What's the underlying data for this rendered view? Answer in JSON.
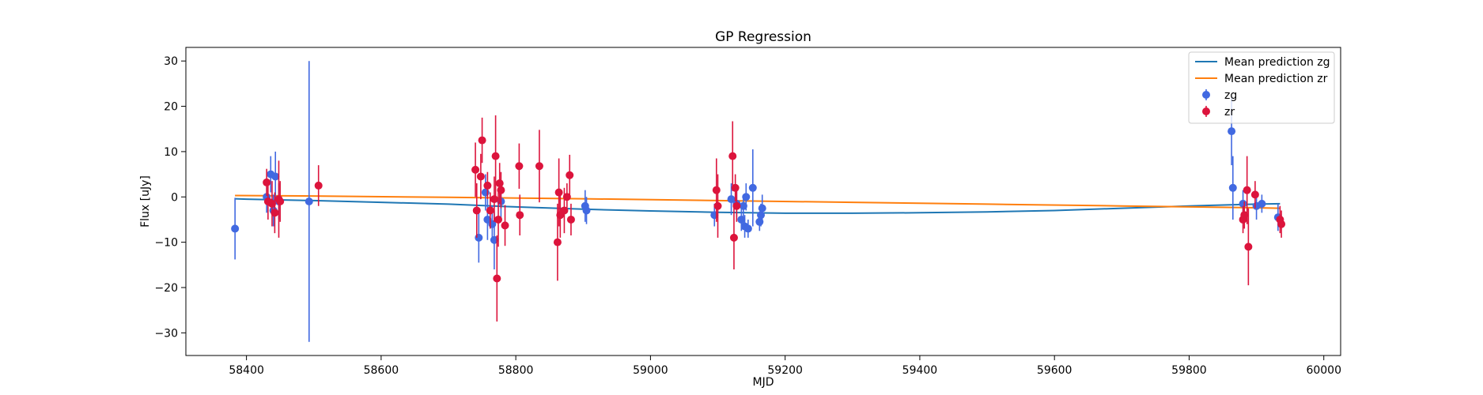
{
  "chart_data": {
    "type": "scatter",
    "title": "GP Regression",
    "xlabel": "MJD",
    "ylabel": "Flux [uJy]",
    "xlim": [
      58310,
      60025
    ],
    "ylim": [
      -35,
      33
    ],
    "xticks": [
      58400,
      58600,
      58800,
      59000,
      59200,
      59400,
      59600,
      59800,
      60000
    ],
    "yticks": [
      -30,
      -20,
      -10,
      0,
      10,
      20,
      30
    ],
    "xtick_labels": [
      "58400",
      "58600",
      "58800",
      "59000",
      "59200",
      "59400",
      "59600",
      "59800",
      "60000"
    ],
    "ytick_labels": [
      "−30",
      "−20",
      "−10",
      "0",
      "10",
      "20",
      "30"
    ],
    "grid": false,
    "legend_position": "top-right",
    "legend": [
      {
        "label": "Mean prediction zg",
        "kind": "line",
        "color": "#1f77b4"
      },
      {
        "label": "Mean prediction zr",
        "kind": "line",
        "color": "#ff7f0e"
      },
      {
        "label": "zg",
        "kind": "errorbar",
        "color": "#4169e1"
      },
      {
        "label": "zr",
        "kind": "errorbar",
        "color": "#dc143c"
      }
    ],
    "mean_lines": [
      {
        "name": "Mean prediction zg",
        "color": "#1f77b4",
        "x": [
          58383,
          58400,
          58500,
          58600,
          58700,
          58800,
          58900,
          59000,
          59100,
          59200,
          59300,
          59400,
          59500,
          59600,
          59700,
          59800,
          59900,
          59935
        ],
        "y": [
          -0.4,
          -0.5,
          -0.8,
          -1.2,
          -1.6,
          -2.2,
          -2.7,
          -3.1,
          -3.4,
          -3.6,
          -3.6,
          -3.5,
          -3.3,
          -3.0,
          -2.5,
          -2.0,
          -1.6,
          -1.5
        ]
      },
      {
        "name": "Mean prediction zr",
        "color": "#ff7f0e",
        "x": [
          58383,
          58500,
          58700,
          58900,
          59100,
          59300,
          59500,
          59700,
          59900,
          59935
        ],
        "y": [
          0.3,
          0.2,
          -0.1,
          -0.4,
          -0.8,
          -1.2,
          -1.6,
          -2.0,
          -2.4,
          -2.5
        ]
      }
    ],
    "series": [
      {
        "name": "zg",
        "color": "#4169e1",
        "points": [
          {
            "x": 58383,
            "y": -7.0,
            "err": 6.8
          },
          {
            "x": 58430,
            "y": 0.0,
            "err": 3.5
          },
          {
            "x": 58436,
            "y": 5.0,
            "err": 4.0
          },
          {
            "x": 58440,
            "y": -3.0,
            "err": 3.5
          },
          {
            "x": 58443,
            "y": 4.5,
            "err": 5.5
          },
          {
            "x": 58448,
            "y": -1.0,
            "err": 4.0
          },
          {
            "x": 58493,
            "y": -1.0,
            "err": 31.0
          },
          {
            "x": 58745,
            "y": -9.0,
            "err": 5.5
          },
          {
            "x": 58755,
            "y": 1.0,
            "err": 4.0
          },
          {
            "x": 58758,
            "y": -5.0,
            "err": 4.5
          },
          {
            "x": 58765,
            "y": -6.0,
            "err": 4.0
          },
          {
            "x": 58768,
            "y": -9.5,
            "err": 6.5
          },
          {
            "x": 58778,
            "y": -1.0,
            "err": 4.0
          },
          {
            "x": 58903,
            "y": -2.0,
            "err": 3.5
          },
          {
            "x": 58905,
            "y": -3.0,
            "err": 3.0
          },
          {
            "x": 59095,
            "y": -4.0,
            "err": 2.5
          },
          {
            "x": 59120,
            "y": -0.5,
            "err": 3.5
          },
          {
            "x": 59128,
            "y": -1.5,
            "err": 3.0
          },
          {
            "x": 59135,
            "y": -5.0,
            "err": 2.5
          },
          {
            "x": 59138,
            "y": -2.0,
            "err": 2.5
          },
          {
            "x": 59140,
            "y": -6.5,
            "err": 2.5
          },
          {
            "x": 59142,
            "y": 0.0,
            "err": 3.0
          },
          {
            "x": 59145,
            "y": -7.0,
            "err": 2.0
          },
          {
            "x": 59152,
            "y": 2.0,
            "err": 8.5
          },
          {
            "x": 59162,
            "y": -5.5,
            "err": 2.0
          },
          {
            "x": 59164,
            "y": -4.0,
            "err": 2.5
          },
          {
            "x": 59166,
            "y": -2.5,
            "err": 3.0
          },
          {
            "x": 59863,
            "y": 14.5,
            "err": 7.5
          },
          {
            "x": 59865,
            "y": 2.0,
            "err": 7.0
          },
          {
            "x": 59880,
            "y": -1.5,
            "err": 3.0
          },
          {
            "x": 59900,
            "y": -2.0,
            "err": 3.0
          },
          {
            "x": 59908,
            "y": -1.5,
            "err": 2.0
          },
          {
            "x": 59932,
            "y": -4.5,
            "err": 3.0
          }
        ]
      },
      {
        "name": "zr",
        "color": "#dc143c",
        "points": [
          {
            "x": 58430,
            "y": 3.2,
            "err": 3.0
          },
          {
            "x": 58432,
            "y": -1.0,
            "err": 4.0
          },
          {
            "x": 58438,
            "y": -1.5,
            "err": 5.0
          },
          {
            "x": 58442,
            "y": -3.5,
            "err": 4.5
          },
          {
            "x": 58448,
            "y": -0.5,
            "err": 8.5
          },
          {
            "x": 58450,
            "y": -1.0,
            "err": 4.5
          },
          {
            "x": 58507,
            "y": 2.5,
            "err": 4.5
          },
          {
            "x": 58740,
            "y": 6.0,
            "err": 6.0
          },
          {
            "x": 58742,
            "y": -3.0,
            "err": 6.0
          },
          {
            "x": 58748,
            "y": 4.5,
            "err": 5.0
          },
          {
            "x": 58750,
            "y": 12.5,
            "err": 5.0
          },
          {
            "x": 58758,
            "y": 2.5,
            "err": 3.0
          },
          {
            "x": 58762,
            "y": -3.0,
            "err": 4.0
          },
          {
            "x": 58768,
            "y": -0.5,
            "err": 5.0
          },
          {
            "x": 58770,
            "y": 9.0,
            "err": 9.0
          },
          {
            "x": 58772,
            "y": -18.0,
            "err": 9.5
          },
          {
            "x": 58774,
            "y": -5.0,
            "err": 6.0
          },
          {
            "x": 58776,
            "y": 3.0,
            "err": 4.5
          },
          {
            "x": 58778,
            "y": 1.5,
            "err": 4.0
          },
          {
            "x": 58784,
            "y": -6.3,
            "err": 4.5
          },
          {
            "x": 58805,
            "y": 6.8,
            "err": 5.0
          },
          {
            "x": 58806,
            "y": -4.0,
            "err": 4.5
          },
          {
            "x": 58835,
            "y": 6.8,
            "err": 8.0
          },
          {
            "x": 58862,
            "y": -10.0,
            "err": 8.5
          },
          {
            "x": 58864,
            "y": 1.0,
            "err": 7.5
          },
          {
            "x": 58866,
            "y": -4.0,
            "err": 5.0
          },
          {
            "x": 58872,
            "y": -3.0,
            "err": 5.0
          },
          {
            "x": 58876,
            "y": 0.0,
            "err": 3.0
          },
          {
            "x": 58880,
            "y": 4.8,
            "err": 4.5
          },
          {
            "x": 58882,
            "y": -5.0,
            "err": 3.5
          },
          {
            "x": 59098,
            "y": 1.5,
            "err": 7.0
          },
          {
            "x": 59100,
            "y": -2.0,
            "err": 7.0
          },
          {
            "x": 59122,
            "y": 9.0,
            "err": 7.7
          },
          {
            "x": 59124,
            "y": -9.0,
            "err": 7.0
          },
          {
            "x": 59126,
            "y": 2.0,
            "err": 3.0
          },
          {
            "x": 59128,
            "y": -2.0,
            "err": 3.5
          },
          {
            "x": 59880,
            "y": -5.0,
            "err": 3.0
          },
          {
            "x": 59882,
            "y": -4.0,
            "err": 3.0
          },
          {
            "x": 59886,
            "y": 1.5,
            "err": 7.5
          },
          {
            "x": 59888,
            "y": -11.0,
            "err": 8.5
          },
          {
            "x": 59898,
            "y": 0.5,
            "err": 3.0
          },
          {
            "x": 59935,
            "y": -5.0,
            "err": 3.0
          },
          {
            "x": 59937,
            "y": -6.0,
            "err": 3.0
          }
        ]
      }
    ]
  }
}
